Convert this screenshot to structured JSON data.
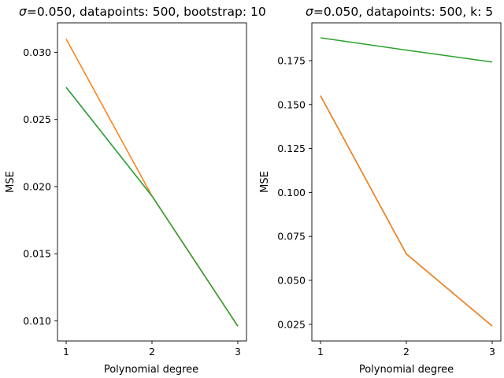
{
  "chart_data": [
    {
      "type": "line",
      "title_symbol": "σ",
      "title": "=0.050, datapoints: 500, bootstrap: 10",
      "xlabel": "Polynomial degree",
      "ylabel": "MSE",
      "x": [
        1,
        2,
        3
      ],
      "xticks": [
        "1",
        "2",
        "3"
      ],
      "yticks": [
        "0.010",
        "0.015",
        "0.020",
        "0.025",
        "0.030"
      ],
      "ylim": [
        0.0085,
        0.0322
      ],
      "series": [
        {
          "color": "#1f77b4",
          "values": [
            0.0274,
            0.0193,
            0.0096
          ]
        },
        {
          "color": "#ff7f0e",
          "values": [
            0.031,
            0.0193,
            0.0096
          ]
        },
        {
          "color": "#2ca02c",
          "values": [
            0.0274,
            0.0193,
            0.0096
          ]
        }
      ]
    },
    {
      "type": "line",
      "title_symbol": "σ",
      "title": "=0.050, datapoints: 500, k: 5",
      "xlabel": "Polynomial degree",
      "ylabel": "MSE",
      "x": [
        1,
        2,
        3
      ],
      "xticks": [
        "1",
        "2",
        "3"
      ],
      "yticks": [
        "0.025",
        "0.050",
        "0.075",
        "0.100",
        "0.125",
        "0.150",
        "0.175"
      ],
      "ylim": [
        0.0155,
        0.1965
      ],
      "series": [
        {
          "color": "#1f77b4",
          "values": [
            0.155,
            0.065,
            0.024
          ]
        },
        {
          "color": "#ff7f0e",
          "values": [
            0.155,
            0.065,
            0.024
          ]
        },
        {
          "color": "#2ca02c",
          "values": [
            0.188,
            0.181,
            0.1742
          ]
        }
      ]
    }
  ]
}
